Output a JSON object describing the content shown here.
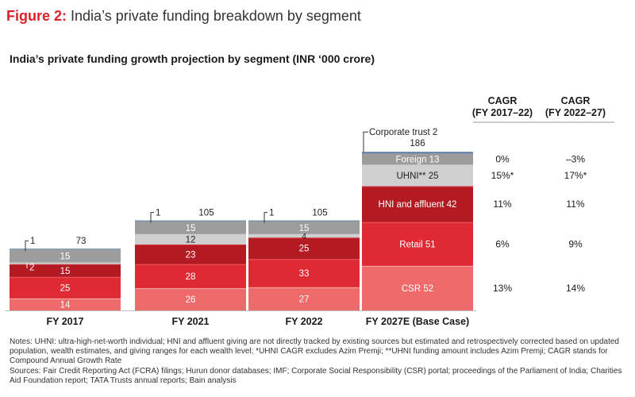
{
  "figure": {
    "label": "Figure 2:",
    "title": "India’s private funding breakdown by segment"
  },
  "notes": {
    "line1": "Notes: UHNI: ultra-high-net-worth individual; HNI and affluent giving are not directly tracked by existing sources but estimated and retrospectively corrected based on updated population, wealth estimates, and giving ranges for each wealth level; *UHNI CAGR excludes Azim Premji; **UHNI funding amount includes Azim Premji; CAGR stands for Compound Annual Growth Rate",
    "line2": "Sources: Fair Credit Reporting Act (FCRA) filings; Hurun donor databases; IMF; Corporate Social Responsibility (CSR) portal; proceedings of the Parliament of India; Charities Aid Foundation report; TATA Trusts annual reports; Bain analysis"
  },
  "colors": {
    "csr": "#ef6a6a",
    "retail": "#df2a33",
    "hni": "#b41a22",
    "uhni": "#cfcfcf",
    "foreign": "#9c9c9c",
    "corporate": "#5b7fa6",
    "csr_top": "#f7a1a1",
    "retail_top": "#ee5057",
    "hni_top": "#cc3a40"
  },
  "chart_data": {
    "type": "bar",
    "stacked": true,
    "title": "India’s private funding growth projection by segment (INR ‘000 crore)",
    "categories": [
      "FY 2017",
      "FY 2021",
      "FY 2022",
      "FY 2027E (Base Case)"
    ],
    "totals": [
      "73",
      "105",
      "105",
      "186"
    ],
    "series": [
      {
        "key": "csr",
        "values": [
          14,
          26,
          27,
          52
        ],
        "labels": [
          "14",
          "26",
          "27",
          "CSR 52"
        ]
      },
      {
        "key": "retail",
        "values": [
          25,
          28,
          33,
          51
        ],
        "labels": [
          "25",
          "28",
          "33",
          "Retail 51"
        ]
      },
      {
        "key": "hni",
        "values": [
          15,
          23,
          25,
          42
        ],
        "labels": [
          "15",
          "23",
          "25",
          "HNI and affluent 42"
        ]
      },
      {
        "key": "uhni",
        "values": [
          2,
          12,
          4,
          25
        ],
        "labels": [
          "2",
          "12",
          "4",
          "UHNI** 25"
        ]
      },
      {
        "key": "foreign",
        "values": [
          15,
          15,
          15,
          13
        ],
        "labels": [
          "15",
          "15",
          "15",
          "Foreign 13"
        ]
      },
      {
        "key": "corporate",
        "values": [
          1,
          1,
          1,
          2
        ],
        "labels": [
          "1",
          "1",
          "1",
          "Corporate trust 2"
        ]
      }
    ],
    "cagr": {
      "headers": [
        [
          "CAGR",
          "(FY 2017–22)"
        ],
        [
          "CAGR",
          "(FY 2022–27)"
        ]
      ],
      "rows": [
        {
          "key": "foreign",
          "values": [
            "0%",
            "–3%"
          ]
        },
        {
          "key": "uhni",
          "values": [
            "15%*",
            "17%*"
          ]
        },
        {
          "key": "hni",
          "values": [
            "11%",
            "11%"
          ]
        },
        {
          "key": "retail",
          "values": [
            "6%",
            "9%"
          ]
        },
        {
          "key": "csr",
          "values": [
            "13%",
            "14%"
          ]
        }
      ]
    }
  }
}
